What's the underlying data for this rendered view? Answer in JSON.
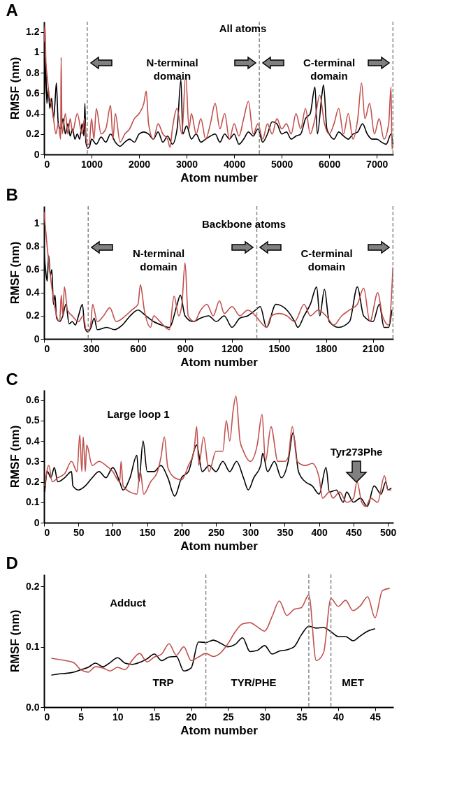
{
  "chart_data": [
    {
      "type": "line",
      "title": "A",
      "xlabel": "Atom number",
      "ylabel": "RMSF (nm)",
      "xlim": [
        0,
        7350
      ],
      "xticks": [
        0,
        1000,
        2000,
        3000,
        4000,
        5000,
        6000,
        7000
      ],
      "ylim": [
        0,
        1.3
      ],
      "yticks": [
        0,
        0.2,
        0.4,
        0.6,
        0.8,
        1,
        1.2
      ],
      "ref_lines": [
        {
          "axis": "x",
          "value": 910,
          "color": "#888888",
          "line_style": "dashed"
        },
        {
          "axis": "x",
          "value": 4530,
          "color": "#888888",
          "line_style": "dashed"
        },
        {
          "axis": "x",
          "value": 7340,
          "color": "#888888",
          "line_style": "dashed"
        }
      ],
      "annotations": [
        "All atoms",
        "N-terminal domain",
        "C-terminal domain"
      ],
      "series": [
        {
          "color": "#000000",
          "x": [
            0,
            15,
            30,
            60,
            90,
            120,
            160,
            200,
            230,
            260,
            300,
            350,
            400,
            450,
            500,
            550,
            600,
            650,
            700,
            750,
            800,
            840,
            860,
            880,
            920,
            960,
            1000,
            1100,
            1200,
            1300,
            1400,
            1500,
            1600,
            1700,
            1800,
            1900,
            2000,
            2100,
            2200,
            2300,
            2400,
            2500,
            2600,
            2700,
            2800,
            2880,
            2920,
            3000,
            3100,
            3200,
            3300,
            3400,
            3500,
            3600,
            3700,
            3800,
            3900,
            4000,
            4100,
            4200,
            4300,
            4400,
            4500,
            4600,
            4700,
            4800,
            4900,
            5000,
            5100,
            5200,
            5300,
            5400,
            5500,
            5600,
            5700,
            5750,
            5850,
            5880,
            5950,
            6000,
            6100,
            6200,
            6300,
            6400,
            6500,
            6600,
            6700,
            6800,
            6900,
            7000,
            7100,
            7200,
            7300,
            7340
          ],
          "values": [
            1.05,
            0.6,
            0.95,
            0.5,
            0.65,
            0.45,
            0.55,
            0.35,
            0.5,
            0.7,
            0.3,
            0.25,
            0.35,
            0.2,
            0.3,
            0.18,
            0.25,
            0.15,
            0.2,
            0.15,
            0.3,
            0.18,
            0.5,
            0.12,
            0.06,
            0.08,
            0.15,
            0.1,
            0.17,
            0.12,
            0.2,
            0.12,
            0.08,
            0.12,
            0.15,
            0.12,
            0.2,
            0.22,
            0.2,
            0.15,
            0.22,
            0.12,
            0.18,
            0.1,
            0.25,
            0.73,
            0.2,
            0.28,
            0.15,
            0.2,
            0.12,
            0.15,
            0.18,
            0.2,
            0.12,
            0.2,
            0.15,
            0.2,
            0.1,
            0.15,
            0.22,
            0.18,
            0.25,
            0.12,
            0.2,
            0.32,
            0.3,
            0.2,
            0.22,
            0.15,
            0.18,
            0.2,
            0.35,
            0.4,
            0.66,
            0.2,
            0.6,
            0.68,
            0.25,
            0.2,
            0.15,
            0.22,
            0.18,
            0.15,
            0.2,
            0.22,
            0.3,
            0.2,
            0.15,
            0.15,
            0.12,
            0.1,
            0.2,
            0.1
          ]
        },
        {
          "color": "#c0504d",
          "x": [
            0,
            20,
            40,
            70,
            100,
            150,
            200,
            250,
            300,
            350,
            360,
            380,
            450,
            500,
            550,
            600,
            700,
            800,
            850,
            900,
            950,
            1000,
            1050,
            1100,
            1200,
            1300,
            1400,
            1450,
            1500,
            1600,
            1700,
            1800,
            1900,
            2000,
            2100,
            2150,
            2200,
            2300,
            2400,
            2500,
            2600,
            2650,
            2700,
            2800,
            2900,
            2980,
            3050,
            3100,
            3200,
            3300,
            3400,
            3500,
            3600,
            3700,
            3800,
            3900,
            4000,
            4100,
            4200,
            4300,
            4400,
            4500,
            4600,
            4700,
            4800,
            4900,
            5000,
            5100,
            5200,
            5300,
            5400,
            5500,
            5600,
            5700,
            5800,
            5900,
            6000,
            6100,
            6200,
            6300,
            6400,
            6500,
            6600,
            6680,
            6750,
            6850,
            6950,
            7050,
            7150,
            7250,
            7300,
            7320,
            7340
          ],
          "values": [
            1.1,
            1.27,
            0.9,
            0.75,
            0.6,
            0.5,
            0.35,
            0.2,
            0.3,
            0.15,
            0.95,
            0.2,
            0.4,
            0.2,
            0.35,
            0.22,
            0.4,
            0.2,
            0.35,
            0.1,
            0.1,
            0.35,
            0.15,
            0.45,
            0.2,
            0.25,
            0.48,
            0.15,
            0.4,
            0.12,
            0.2,
            0.25,
            0.35,
            0.4,
            0.5,
            0.62,
            0.3,
            0.15,
            0.3,
            0.2,
            0.15,
            0.07,
            0.25,
            0.45,
            0.2,
            0.78,
            0.25,
            0.4,
            0.2,
            0.35,
            0.15,
            0.3,
            0.5,
            0.25,
            0.4,
            0.15,
            0.3,
            0.18,
            0.35,
            0.52,
            0.2,
            0.3,
            0.15,
            0.3,
            0.2,
            0.35,
            0.25,
            0.3,
            0.2,
            0.4,
            0.25,
            0.45,
            0.2,
            0.35,
            0.58,
            0.3,
            0.2,
            0.3,
            0.45,
            0.2,
            0.4,
            0.15,
            0.35,
            0.7,
            0.35,
            0.5,
            0.2,
            0.35,
            0.15,
            0.3,
            0.66,
            0.05,
            0.1
          ]
        }
      ]
    },
    {
      "type": "line",
      "title": "B",
      "xlabel": "Atom number",
      "ylabel": "RMSF (nm)",
      "xlim": [
        0,
        2230
      ],
      "xticks": [
        0,
        300,
        600,
        900,
        1200,
        1500,
        1800,
        2100
      ],
      "ylim": [
        0,
        1.15
      ],
      "yticks": [
        0,
        0.2,
        0.4,
        0.6,
        0.8,
        1
      ],
      "ref_lines": [
        {
          "axis": "x",
          "value": 282,
          "color": "#888888",
          "line_style": "dashed"
        },
        {
          "axis": "x",
          "value": 1358,
          "color": "#888888",
          "line_style": "dashed"
        },
        {
          "axis": "x",
          "value": 2227,
          "color": "#888888",
          "line_style": "dashed"
        }
      ],
      "annotations": [
        "Backbone atoms",
        "N-terminal domain",
        "C-terminal domain"
      ],
      "series": [
        {
          "color": "#000000",
          "x": [
            0,
            10,
            20,
            30,
            40,
            50,
            60,
            70,
            80,
            100,
            120,
            140,
            160,
            180,
            200,
            220,
            245,
            260,
            280,
            300,
            320,
            340,
            400,
            450,
            500,
            550,
            600,
            650,
            700,
            750,
            800,
            850,
            870,
            900,
            950,
            1000,
            1050,
            1100,
            1150,
            1200,
            1250,
            1300,
            1350,
            1380,
            1420,
            1480,
            1550,
            1600,
            1620,
            1660,
            1700,
            1740,
            1760,
            1790,
            1820,
            1880,
            1950,
            2000,
            2040,
            2100,
            2140,
            2170,
            2200,
            2220
          ],
          "values": [
            0.75,
            0.6,
            0.5,
            0.72,
            0.55,
            0.6,
            0.3,
            0.38,
            0.18,
            0.15,
            0.2,
            0.3,
            0.13,
            0.15,
            0.12,
            0.2,
            0.3,
            0.1,
            0.06,
            0.1,
            0.18,
            0.08,
            0.1,
            0.08,
            0.12,
            0.2,
            0.25,
            0.2,
            0.15,
            0.12,
            0.1,
            0.3,
            0.38,
            0.2,
            0.15,
            0.18,
            0.2,
            0.15,
            0.2,
            0.1,
            0.18,
            0.2,
            0.25,
            0.28,
            0.1,
            0.3,
            0.25,
            0.15,
            0.1,
            0.2,
            0.3,
            0.45,
            0.2,
            0.43,
            0.15,
            0.1,
            0.15,
            0.45,
            0.2,
            0.15,
            0.3,
            0.1,
            0.1,
            0.25
          ]
        },
        {
          "color": "#c0504d",
          "x": [
            0,
            10,
            20,
            40,
            60,
            80,
            100,
            110,
            120,
            130,
            150,
            180,
            220,
            250,
            270,
            290,
            300,
            310,
            340,
            380,
            420,
            460,
            520,
            560,
            600,
            615,
            640,
            680,
            700,
            740,
            800,
            830,
            860,
            880,
            900,
            920,
            960,
            1000,
            1040,
            1080,
            1120,
            1150,
            1200,
            1250,
            1300,
            1350,
            1380,
            1420,
            1450,
            1500,
            1550,
            1600,
            1660,
            1700,
            1750,
            1800,
            1850,
            1900,
            1950,
            2000,
            2040,
            2080,
            2130,
            2160,
            2200,
            2227
          ],
          "values": [
            1.1,
            0.95,
            0.8,
            0.55,
            0.35,
            0.2,
            0.15,
            0.38,
            0.2,
            0.45,
            0.25,
            0.2,
            0.15,
            0.2,
            0.08,
            0.08,
            0.15,
            0.3,
            0.15,
            0.2,
            0.27,
            0.15,
            0.2,
            0.25,
            0.3,
            0.47,
            0.25,
            0.1,
            0.2,
            0.15,
            0.08,
            0.37,
            0.2,
            0.3,
            0.66,
            0.2,
            0.15,
            0.25,
            0.3,
            0.2,
            0.33,
            0.22,
            0.28,
            0.2,
            0.25,
            0.2,
            0.15,
            0.1,
            0.2,
            0.22,
            0.2,
            0.15,
            0.3,
            0.2,
            0.25,
            0.2,
            0.12,
            0.2,
            0.25,
            0.3,
            0.44,
            0.15,
            0.4,
            0.2,
            0.12,
            0.62
          ]
        }
      ]
    },
    {
      "type": "line",
      "title": "C",
      "xlabel": "Atom number",
      "ylabel": "RMSF (nm)",
      "xlim": [
        0,
        508
      ],
      "xticks": [
        0,
        50,
        100,
        150,
        200,
        250,
        300,
        350,
        400,
        450,
        500
      ],
      "ylim": [
        0,
        0.65
      ],
      "yticks": [
        0,
        0.1,
        0.2,
        0.3,
        0.4,
        0.5,
        0.6
      ],
      "annotations": [
        "Large loop 1",
        "Tyr273Phe"
      ],
      "series": [
        {
          "color": "#000000",
          "x": [
            1,
            5,
            10,
            15,
            20,
            30,
            40,
            42,
            50,
            60,
            70,
            80,
            90,
            100,
            110,
            115,
            125,
            135,
            138,
            144,
            150,
            160,
            170,
            180,
            190,
            200,
            210,
            222,
            230,
            240,
            250,
            260,
            270,
            280,
            290,
            297,
            305,
            315,
            318,
            325,
            335,
            345,
            355,
            362,
            370,
            380,
            390,
            400,
            410,
            415,
            425,
            435,
            440,
            450,
            460,
            470,
            480,
            490,
            497,
            500,
            505
          ],
          "values": [
            0.15,
            0.25,
            0.22,
            0.27,
            0.2,
            0.22,
            0.25,
            0.18,
            0.16,
            0.18,
            0.22,
            0.25,
            0.22,
            0.27,
            0.2,
            0.16,
            0.22,
            0.33,
            0.2,
            0.4,
            0.25,
            0.25,
            0.28,
            0.22,
            0.13,
            0.22,
            0.25,
            0.38,
            0.25,
            0.28,
            0.25,
            0.3,
            0.25,
            0.3,
            0.22,
            0.16,
            0.22,
            0.28,
            0.34,
            0.25,
            0.3,
            0.22,
            0.3,
            0.44,
            0.25,
            0.2,
            0.18,
            0.14,
            0.27,
            0.15,
            0.16,
            0.1,
            0.15,
            0.1,
            0.12,
            0.08,
            0.18,
            0.14,
            0.2,
            0.16,
            0.17
          ]
        },
        {
          "color": "#c0504d",
          "x": [
            1,
            7,
            12,
            20,
            30,
            40,
            48,
            52,
            55,
            57,
            60,
            62,
            70,
            80,
            90,
            100,
            110,
            112,
            115,
            125,
            135,
            140,
            145,
            155,
            165,
            170,
            175,
            180,
            190,
            200,
            210,
            218,
            222,
            225,
            232,
            240,
            250,
            260,
            265,
            270,
            275,
            279,
            285,
            290,
            300,
            310,
            317,
            322,
            330,
            340,
            350,
            355,
            361,
            368,
            380,
            390,
            400,
            405,
            415,
            420,
            430,
            440,
            450,
            455,
            462,
            468,
            475,
            485,
            495,
            500,
            505
          ],
          "values": [
            0.18,
            0.28,
            0.2,
            0.22,
            0.24,
            0.3,
            0.25,
            0.43,
            0.25,
            0.42,
            0.25,
            0.38,
            0.28,
            0.3,
            0.28,
            0.25,
            0.2,
            0.3,
            0.18,
            0.15,
            0.14,
            0.25,
            0.14,
            0.2,
            0.25,
            0.32,
            0.42,
            0.27,
            0.22,
            0.21,
            0.28,
            0.35,
            0.47,
            0.28,
            0.42,
            0.25,
            0.35,
            0.35,
            0.5,
            0.4,
            0.55,
            0.62,
            0.4,
            0.35,
            0.3,
            0.38,
            0.53,
            0.3,
            0.47,
            0.3,
            0.3,
            0.32,
            0.47,
            0.3,
            0.28,
            0.29,
            0.22,
            0.12,
            0.15,
            0.12,
            0.15,
            0.1,
            0.12,
            0.2,
            0.1,
            0.08,
            0.12,
            0.1,
            0.23,
            0.16,
            0.16
          ]
        }
      ]
    },
    {
      "type": "line",
      "title": "D",
      "xlabel": "Atom number",
      "ylabel": "RMSF (nm)",
      "xlim": [
        0,
        47.5
      ],
      "xticks": [
        0,
        5,
        10,
        15,
        20,
        25,
        30,
        35,
        40,
        45
      ],
      "ylim": [
        0,
        0.22
      ],
      "yticks": [
        {
          "value": 0,
          "label": "0.0"
        },
        0.1,
        0.2
      ],
      "ref_lines": [
        {
          "axis": "x",
          "value": 22,
          "color": "#888888",
          "line_style": "dashed"
        },
        {
          "axis": "x",
          "value": 36,
          "color": "#888888",
          "line_style": "dashed"
        },
        {
          "axis": "x",
          "value": 39,
          "color": "#888888",
          "line_style": "dashed"
        }
      ],
      "annotations": [
        "Adduct",
        "TRP",
        "TYR/PHE",
        "MET"
      ],
      "series": [
        {
          "color": "#000000",
          "x": [
            1,
            2,
            3,
            4,
            5,
            6,
            7,
            8,
            9,
            10,
            11,
            12,
            13,
            14,
            15,
            16,
            17,
            18,
            19,
            20,
            21,
            22,
            23,
            24,
            25,
            26,
            27,
            28,
            29,
            30,
            31,
            32,
            33,
            34,
            35,
            36,
            37,
            38,
            39,
            40,
            41,
            42,
            43,
            44,
            45
          ],
          "values": [
            0.053,
            0.055,
            0.056,
            0.058,
            0.062,
            0.066,
            0.073,
            0.067,
            0.074,
            0.082,
            0.073,
            0.071,
            0.074,
            0.08,
            0.088,
            0.077,
            0.083,
            0.084,
            0.06,
            0.065,
            0.108,
            0.107,
            0.111,
            0.106,
            0.1,
            0.104,
            0.115,
            0.092,
            0.094,
            0.102,
            0.088,
            0.093,
            0.095,
            0.1,
            0.12,
            0.134,
            0.131,
            0.132,
            0.125,
            0.117,
            0.117,
            0.11,
            0.118,
            0.126,
            0.13
          ]
        },
        {
          "color": "#c0504d",
          "x": [
            1,
            2,
            3,
            4,
            5,
            6,
            7,
            8,
            9,
            10,
            11,
            12,
            13,
            14,
            15,
            16,
            17,
            18,
            19,
            20,
            21,
            22,
            23,
            24,
            25,
            26,
            27,
            28,
            29,
            30,
            31,
            32,
            33,
            34,
            35,
            36,
            37,
            38,
            39,
            40,
            41,
            42,
            43,
            44,
            45,
            46,
            47
          ],
          "values": [
            0.081,
            0.079,
            0.077,
            0.074,
            0.062,
            0.058,
            0.067,
            0.065,
            0.06,
            0.066,
            0.062,
            0.078,
            0.089,
            0.075,
            0.083,
            0.088,
            0.105,
            0.086,
            0.1,
            0.077,
            0.083,
            0.089,
            0.084,
            0.09,
            0.105,
            0.125,
            0.138,
            0.14,
            0.133,
            0.126,
            0.15,
            0.176,
            0.152,
            0.162,
            0.165,
            0.186,
            0.077,
            0.09,
            0.18,
            0.167,
            0.177,
            0.16,
            0.168,
            0.183,
            0.148,
            0.193,
            0.197
          ]
        }
      ]
    }
  ]
}
